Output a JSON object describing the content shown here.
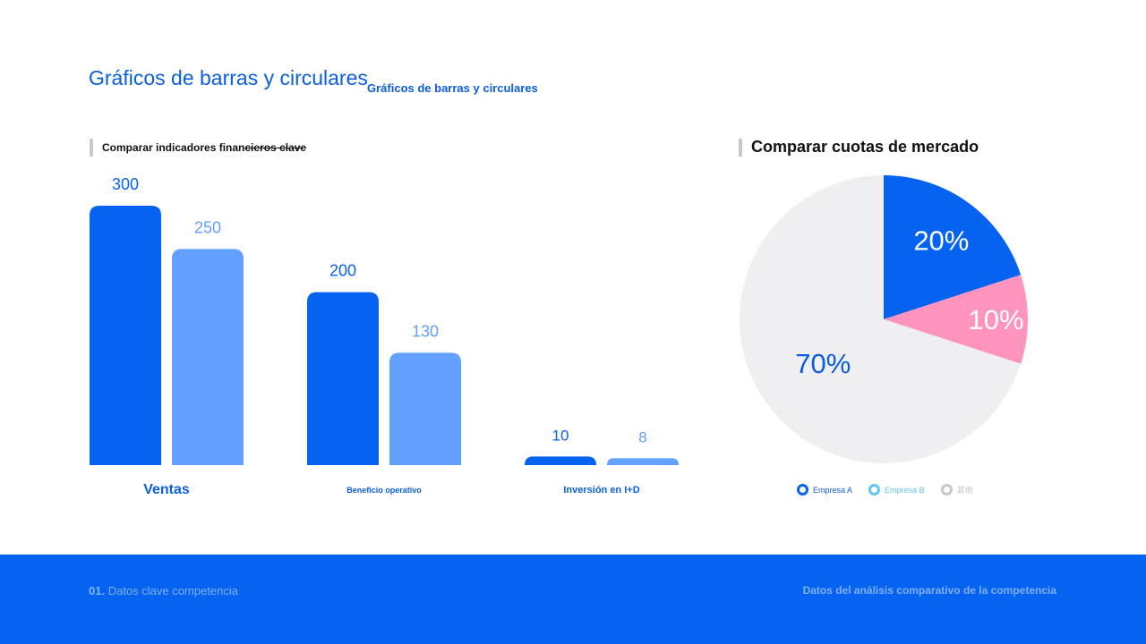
{
  "header": {
    "title": "Gráficos de barras y circulares",
    "subtitle": "Gráficos de barras y circulares"
  },
  "bar_section": {
    "heading_plain": "Comparar indicadores finan",
    "heading_struck": "cieros clave"
  },
  "pie_section": {
    "heading": "Comparar cuotas de mercado"
  },
  "colors": {
    "primary": "#0663f2",
    "secondary": "#62a1ff",
    "pink": "#ff94bf",
    "other": "#efeef0"
  },
  "chart_data": [
    {
      "type": "bar",
      "categories": [
        "Ventas",
        "Beneficio operativo",
        "Inversión en I+D"
      ],
      "series": [
        {
          "values": [
            300,
            200,
            10
          ],
          "color": "#0663f2"
        },
        {
          "values": [
            250,
            130,
            8
          ],
          "color": "#62a1ff"
        }
      ],
      "title": "Comparar indicadores financieros clave",
      "ylim": [
        0,
        300
      ],
      "grid": false
    },
    {
      "type": "pie",
      "title": "Comparar cuotas de mercado",
      "slices": [
        {
          "label": "Empresa A",
          "value": 20,
          "display": "20%",
          "color": "#0663f2"
        },
        {
          "label": "Empresa B",
          "value": 10,
          "display": "10%",
          "color": "#ff94bf"
        },
        {
          "label": "其他",
          "value": 70,
          "display": "70%",
          "color": "#efeef0"
        }
      ],
      "legend": [
        {
          "label": "Empresa A",
          "color": "#0663f2"
        },
        {
          "label": "Empresa B",
          "color": "#62c4f6"
        },
        {
          "label": "其他",
          "color": "#c8c8c8"
        }
      ],
      "legend_position": "bottom"
    }
  ],
  "footer": {
    "section_number": "01.",
    "section_name": "Datos clave competencia",
    "right_text": "Datos del análisis comparativo de la competencia"
  }
}
